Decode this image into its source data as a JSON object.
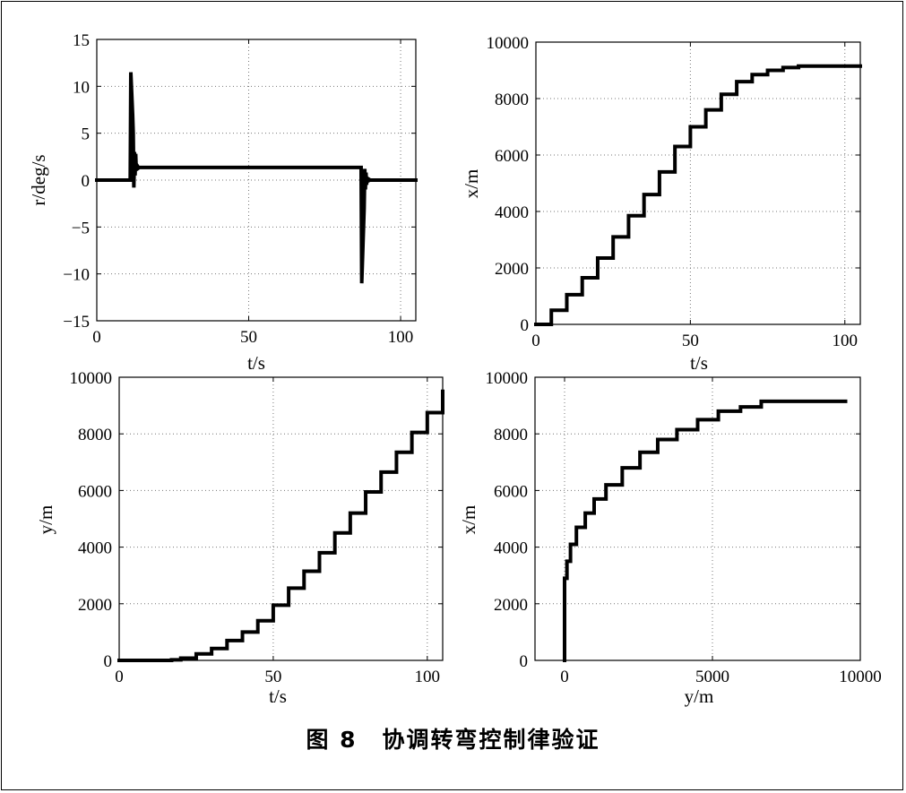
{
  "caption": {
    "figure_number": "图 8",
    "title": "协调转弯控制律验证"
  },
  "chart_data": [
    {
      "type": "line",
      "xlabel": "t/s",
      "ylabel": "r/deg/s",
      "xlim": [
        0,
        105
      ],
      "ylim": [
        -15,
        15
      ],
      "xticks": [
        0,
        50,
        100
      ],
      "yticks": [
        -15,
        -10,
        -5,
        0,
        5,
        10,
        15
      ],
      "grid": true,
      "series": [
        {
          "x": [
            0,
            11,
            11.2,
            11.4,
            11.6,
            11.8,
            12.0,
            12.2,
            12.4,
            12.6,
            12.8,
            13.0,
            13.2,
            13.4,
            13.6,
            13.8,
            14.0,
            14.5,
            15,
            86.8,
            87.0,
            87.2,
            87.4,
            87.6,
            87.8,
            88.0,
            88.2,
            88.4,
            88.6,
            88.8,
            89.0,
            89.2,
            89.5,
            90,
            105
          ],
          "y": [
            0,
            0,
            11.5,
            10,
            8.5,
            7,
            5,
            -0.8,
            3,
            0.5,
            2.8,
            1.0,
            1.6,
            1.2,
            1.4,
            1.3,
            1.35,
            1.35,
            1.35,
            1.35,
            1.35,
            -11,
            -9,
            -7,
            -5,
            -3,
            1.2,
            -1,
            0.8,
            -0.5,
            0.3,
            -0.2,
            0.1,
            0,
            0
          ]
        }
      ]
    },
    {
      "type": "line",
      "xlabel": "t/s",
      "ylabel": "x/m",
      "xlim": [
        0,
        105
      ],
      "ylim": [
        0,
        10000
      ],
      "xticks": [
        0,
        50,
        100
      ],
      "yticks": [
        0,
        2000,
        4000,
        6000,
        8000,
        10000
      ],
      "grid": true,
      "series": [
        {
          "x": [
            0,
            5,
            10,
            15,
            20,
            25,
            30,
            35,
            40,
            45,
            50,
            55,
            60,
            65,
            70,
            75,
            80,
            85,
            90,
            95,
            100,
            105
          ],
          "y": [
            0,
            500,
            1050,
            1650,
            2350,
            3100,
            3850,
            4600,
            5400,
            6300,
            7000,
            7600,
            8150,
            8600,
            8850,
            9000,
            9100,
            9150,
            9150,
            9150,
            9150,
            9150
          ]
        }
      ]
    },
    {
      "type": "line",
      "xlabel": "t/s",
      "ylabel": "y/m",
      "xlim": [
        0,
        105
      ],
      "ylim": [
        0,
        10000
      ],
      "xticks": [
        0,
        50,
        100
      ],
      "yticks": [
        0,
        2000,
        4000,
        6000,
        8000,
        10000
      ],
      "grid": true,
      "series": [
        {
          "x": [
            0,
            5,
            10,
            15,
            17,
            20,
            25,
            30,
            35,
            40,
            45,
            50,
            55,
            60,
            65,
            70,
            75,
            80,
            85,
            90,
            95,
            100,
            105
          ],
          "y": [
            0,
            0,
            0,
            0,
            20,
            80,
            230,
            420,
            700,
            1000,
            1400,
            1950,
            2550,
            3150,
            3800,
            4500,
            5200,
            5950,
            6650,
            7350,
            8050,
            8750,
            9500
          ]
        }
      ]
    },
    {
      "type": "line",
      "xlabel": "y/m",
      "ylabel": "x/m",
      "xlim": [
        -1000,
        10000
      ],
      "ylim": [
        0,
        10000
      ],
      "xticks": [
        0,
        5000,
        10000
      ],
      "yticks": [
        0,
        2000,
        4000,
        6000,
        8000,
        10000
      ],
      "grid": true,
      "series": [
        {
          "x": [
            0,
            0,
            80,
            200,
            400,
            700,
            1000,
            1400,
            1950,
            2550,
            3150,
            3800,
            4500,
            5200,
            5950,
            6650,
            7350,
            8050,
            8750,
            9500
          ],
          "y": [
            0,
            2900,
            3500,
            4100,
            4700,
            5200,
            5700,
            6200,
            6800,
            7350,
            7800,
            8150,
            8500,
            8800,
            8950,
            9150,
            9150,
            9150,
            9150,
            9150
          ]
        }
      ]
    }
  ]
}
